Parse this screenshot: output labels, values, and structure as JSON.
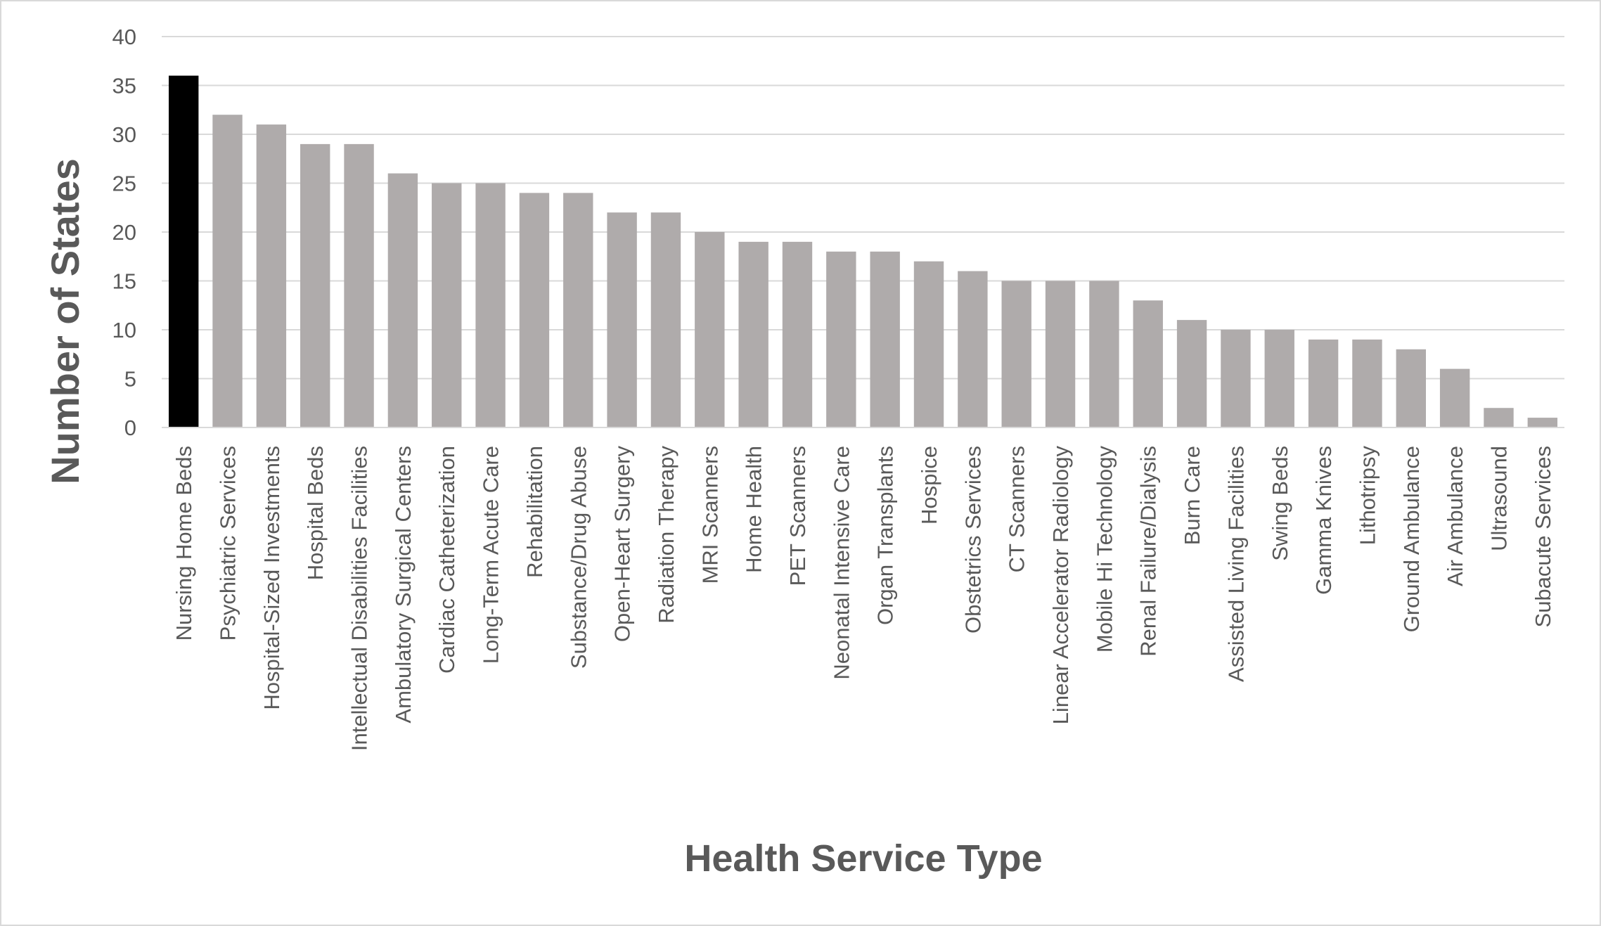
{
  "chart_data": {
    "type": "bar",
    "xlabel": "Health Service Type",
    "ylabel": "Number of States",
    "ylim": [
      0,
      40
    ],
    "yticks": [
      0,
      5,
      10,
      15,
      20,
      25,
      30,
      35,
      40
    ],
    "grid": true,
    "legend": "none",
    "colors": {
      "highlight": "#000000",
      "bar": "#afabab",
      "grid": "#d9d9d9",
      "text": "#595959"
    },
    "highlight_index": 0,
    "categories": [
      "Nursing Home Beds",
      "Psychiatric Services",
      "Hospital-Sized Investments",
      "Hospital Beds",
      "Intellectual Disabilities Facilities",
      "Ambulatory Surgical Centers",
      "Cardiac Catheterization",
      "Long-Term Acute Care",
      "Rehabilitation",
      "Substance/Drug Abuse",
      "Open-Heart Surgery",
      "Radiation Therapy",
      "MRI Scanners",
      "Home Health",
      "PET Scanners",
      "Neonatal Intensive Care",
      "Organ Transplants",
      "Hospice",
      "Obstetrics Services",
      "CT Scanners",
      "Linear Accelerator Radiology",
      "Mobile Hi Technology",
      "Renal Failure/Dialysis",
      "Burn Care",
      "Assisted Living Facilities",
      "Swing Beds",
      "Gamma Knives",
      "Lithotripsy",
      "Ground Ambulance",
      "Air Ambulance",
      "Ultrasound",
      "Subacute Services"
    ],
    "values": [
      36,
      32,
      31,
      29,
      29,
      26,
      25,
      25,
      24,
      24,
      22,
      22,
      20,
      19,
      19,
      18,
      18,
      17,
      16,
      15,
      15,
      15,
      13,
      11,
      10,
      10,
      9,
      9,
      8,
      6,
      2,
      1
    ]
  }
}
